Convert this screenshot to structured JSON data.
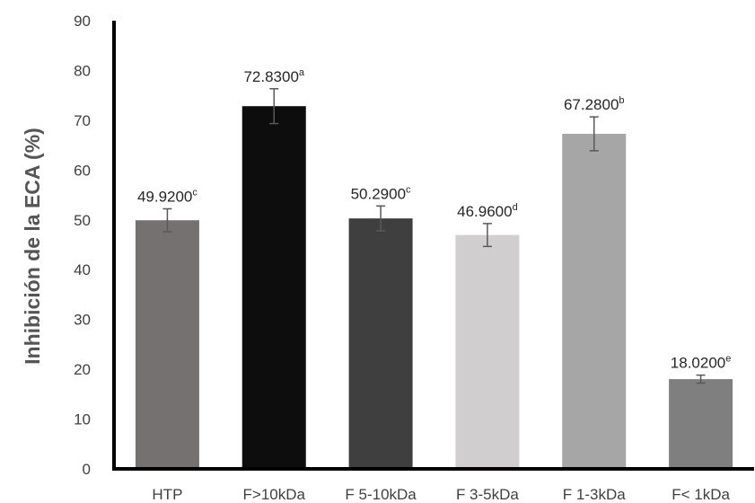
{
  "chart_data": {
    "type": "bar",
    "title": "",
    "xlabel": "",
    "ylabel": "Inhibición de la ECA (%)",
    "ylim": [
      0,
      90
    ],
    "yticks": [
      0,
      10,
      20,
      30,
      40,
      50,
      60,
      70,
      80,
      90
    ],
    "grid": false,
    "categories": [
      "HTP",
      "F>10kDa",
      "F 5-10kDa",
      "F 3-5kDa",
      "F 1-3kDa",
      "F< 1kDa"
    ],
    "values": [
      49.92,
      72.83,
      50.29,
      46.96,
      67.28,
      18.02
    ],
    "errors": [
      2.3,
      3.5,
      2.5,
      2.3,
      3.4,
      0.8
    ],
    "labels": [
      "49.9200",
      "72.8300",
      "50.2900",
      "46.9600",
      "67.2800",
      "18.0200"
    ],
    "superscripts": [
      "c",
      "a",
      "c",
      "d",
      "b",
      "e"
    ],
    "colors": [
      "#767171",
      "#0d0d0d",
      "#3f3f3f",
      "#d0cece",
      "#a6a6a6",
      "#7f7f7f"
    ]
  }
}
